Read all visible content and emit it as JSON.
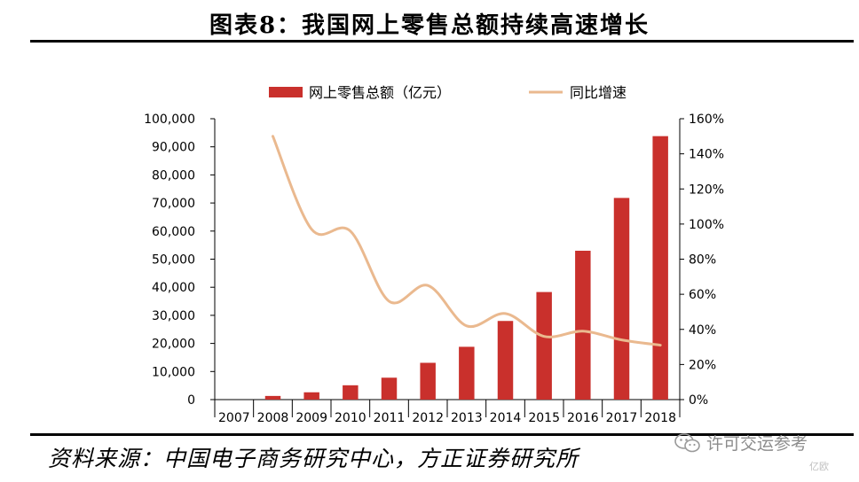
{
  "header": {
    "title": "图表8：我国网上零售总额持续高速增长"
  },
  "footer": {
    "source": "资料来源：中国电子商务研究中心，方正证券研究所"
  },
  "watermark": {
    "text": "许可交运参考",
    "sub": "亿欧"
  },
  "colors": {
    "bar": "#c9302c",
    "line": "#eab98f",
    "axis": "#000000"
  },
  "chart_data": {
    "type": "bar",
    "categories": [
      "2007",
      "2008",
      "2009",
      "2010",
      "2011",
      "2012",
      "2013",
      "2014",
      "2015",
      "2016",
      "2017",
      "2018"
    ],
    "series": [
      {
        "name": "网上零售总额（亿元）",
        "type": "bar",
        "axis": "left",
        "values": [
          null,
          1300,
          2600,
          5100,
          7800,
          13100,
          18800,
          28000,
          38300,
          53000,
          71800,
          93800
        ]
      },
      {
        "name": "同比增速",
        "type": "line",
        "axis": "right",
        "values": [
          null,
          1.5,
          0.97,
          0.96,
          0.56,
          0.65,
          0.42,
          0.49,
          0.36,
          0.39,
          0.34,
          0.31
        ]
      }
    ],
    "y_left": {
      "min": 0,
      "max": 100000,
      "step": 10000,
      "tick_labels": [
        "0",
        "10,000",
        "20,000",
        "30,000",
        "40,000",
        "50,000",
        "60,000",
        "70,000",
        "80,000",
        "90,000",
        "100,000"
      ]
    },
    "y_right": {
      "min": 0,
      "max": 1.6,
      "step": 0.2,
      "tick_labels": [
        "0%",
        "20%",
        "40%",
        "60%",
        "80%",
        "100%",
        "120%",
        "140%",
        "160%"
      ]
    },
    "legend": {
      "position": "top",
      "labels": [
        "网上零售总额（亿元）",
        "同比增速"
      ]
    },
    "title": "",
    "xlabel": "",
    "ylabel": ""
  }
}
